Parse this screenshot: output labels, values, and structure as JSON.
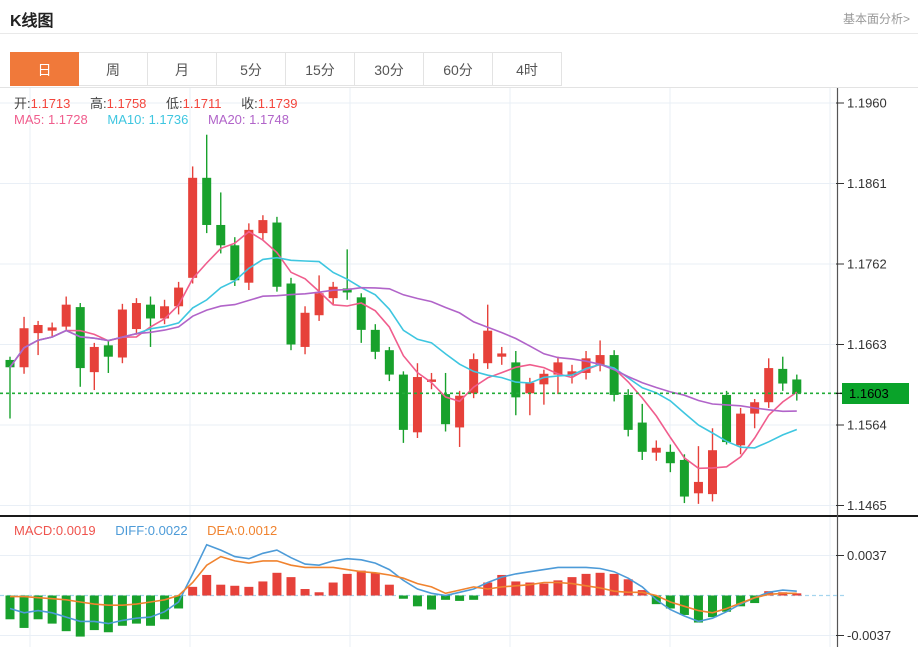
{
  "header": {
    "title": "K线图",
    "link_label": "基本面分析>"
  },
  "tabs": {
    "active_index": 0,
    "items": [
      "日",
      "周",
      "月",
      "5分",
      "15分",
      "30分",
      "60分",
      "4时"
    ]
  },
  "overlay": {
    "ohlc": [
      {
        "label": "开:",
        "value": "1.1713"
      },
      {
        "label": "高:",
        "value": "1.1758"
      },
      {
        "label": "低:",
        "value": "1.1711"
      },
      {
        "label": "收:",
        "value": "1.1739"
      }
    ],
    "ma": [
      {
        "label": "MA5:",
        "value": "1.1728"
      },
      {
        "label": "MA10:",
        "value": "1.1736"
      },
      {
        "label": "MA20:",
        "value": "1.1748"
      }
    ],
    "macd": [
      {
        "label": "MACD:",
        "value": "0.0019"
      },
      {
        "label": "DIFF:",
        "value": "0.0022"
      },
      {
        "label": "DEA:",
        "value": "0.0012"
      }
    ]
  },
  "price_line": {
    "label": "1.1603",
    "value": 1.1603
  },
  "axes": {
    "price_tick_labels": [
      "1.1960",
      "1.1861",
      "1.1762",
      "1.1663",
      "1.1564",
      "1.1465"
    ],
    "macd_tick_labels": [
      "0.0037",
      "-0.0037"
    ]
  },
  "colors": {
    "up": "#e6413a",
    "down": "#18a12c",
    "ma5": "#f05d8d",
    "ma10": "#3ec6e0",
    "ma20": "#b164c9",
    "diff": "#4d9bd8",
    "dea": "#f0832f",
    "price_line": "#22ac38",
    "price_label_bg": "#0aa32a",
    "grid": "#e9eff6",
    "axis": "#555555",
    "separator": "#1a1a1a",
    "zero_dash": "#a5d5ee",
    "accent_tab": "#f0793a"
  },
  "chart_data": {
    "type": "candlestick",
    "title": "K线图",
    "legend": [
      "MA5",
      "MA10",
      "MA20",
      "MACD",
      "DIFF",
      "DEA"
    ],
    "price_axis": {
      "max": 1.196,
      "min": 1.1465,
      "ticks": [
        1.196,
        1.1861,
        1.1762,
        1.1663,
        1.1564,
        1.1465
      ]
    },
    "current_price": 1.1603,
    "ma_periods": [
      5,
      10,
      20
    ],
    "candles_ohlc": [
      [
        1.1644,
        1.1648,
        1.1572,
        1.1635
      ],
      [
        1.1635,
        1.1697,
        1.1627,
        1.1683
      ],
      [
        1.1677,
        1.1692,
        1.165,
        1.1687
      ],
      [
        1.168,
        1.169,
        1.1672,
        1.1684
      ],
      [
        1.1685,
        1.1722,
        1.168,
        1.1712
      ],
      [
        1.1709,
        1.1714,
        1.1611,
        1.1634
      ],
      [
        1.1629,
        1.1665,
        1.1607,
        1.166
      ],
      [
        1.1662,
        1.1668,
        1.1628,
        1.1648
      ],
      [
        1.1647,
        1.1713,
        1.164,
        1.1706
      ],
      [
        1.1682,
        1.172,
        1.1675,
        1.1714
      ],
      [
        1.1712,
        1.1722,
        1.166,
        1.1695
      ],
      [
        1.1695,
        1.1718,
        1.1688,
        1.171
      ],
      [
        1.171,
        1.174,
        1.17,
        1.1733
      ],
      [
        1.1745,
        1.1882,
        1.1738,
        1.1868
      ],
      [
        1.1868,
        1.1921,
        1.18,
        1.181
      ],
      [
        1.181,
        1.185,
        1.1775,
        1.1785
      ],
      [
        1.1785,
        1.1795,
        1.1735,
        1.1742
      ],
      [
        1.1739,
        1.1812,
        1.173,
        1.1804
      ],
      [
        1.18,
        1.1822,
        1.1792,
        1.1816
      ],
      [
        1.1813,
        1.182,
        1.1728,
        1.1734
      ],
      [
        1.1738,
        1.1745,
        1.1656,
        1.1663
      ],
      [
        1.166,
        1.171,
        1.1651,
        1.1702
      ],
      [
        1.1699,
        1.1748,
        1.1692,
        1.1726
      ],
      [
        1.172,
        1.174,
        1.1712,
        1.1734
      ],
      [
        1.1732,
        1.178,
        1.1718,
        1.1727
      ],
      [
        1.1721,
        1.1726,
        1.1665,
        1.1681
      ],
      [
        1.1681,
        1.1688,
        1.1645,
        1.1654
      ],
      [
        1.1656,
        1.166,
        1.1618,
        1.1626
      ],
      [
        1.1626,
        1.163,
        1.1542,
        1.1558
      ],
      [
        1.1555,
        1.164,
        1.1548,
        1.1623
      ],
      [
        1.1617,
        1.1628,
        1.1608,
        1.162
      ],
      [
        1.1602,
        1.1628,
        1.1556,
        1.1565
      ],
      [
        1.1561,
        1.1606,
        1.1537,
        1.16
      ],
      [
        1.1603,
        1.1652,
        1.1597,
        1.1645
      ],
      [
        1.164,
        1.1712,
        1.1633,
        1.168
      ],
      [
        1.1648,
        1.166,
        1.1638,
        1.1652
      ],
      [
        1.1641,
        1.1655,
        1.1576,
        1.1598
      ],
      [
        1.1603,
        1.1622,
        1.1576,
        1.1616
      ],
      [
        1.1614,
        1.1632,
        1.1589,
        1.1627
      ],
      [
        1.1626,
        1.1648,
        1.1602,
        1.1641
      ],
      [
        1.1625,
        1.1638,
        1.1615,
        1.163
      ],
      [
        1.1628,
        1.1655,
        1.162,
        1.1646
      ],
      [
        1.1637,
        1.1668,
        1.163,
        1.165
      ],
      [
        1.165,
        1.1656,
        1.1593,
        1.1601
      ],
      [
        1.1601,
        1.1608,
        1.155,
        1.1558
      ],
      [
        1.1567,
        1.159,
        1.1521,
        1.1531
      ],
      [
        1.153,
        1.1545,
        1.152,
        1.1536
      ],
      [
        1.1531,
        1.154,
        1.1506,
        1.1517
      ],
      [
        1.1521,
        1.1528,
        1.1468,
        1.1476
      ],
      [
        1.148,
        1.1538,
        1.1467,
        1.1494
      ],
      [
        1.1479,
        1.156,
        1.147,
        1.1533
      ],
      [
        1.1601,
        1.1606,
        1.154,
        1.1543
      ],
      [
        1.1539,
        1.1585,
        1.1528,
        1.1578
      ],
      [
        1.1578,
        1.1596,
        1.156,
        1.1592
      ],
      [
        1.1592,
        1.1646,
        1.1585,
        1.1634
      ],
      [
        1.1633,
        1.1648,
        1.1606,
        1.1615
      ],
      [
        1.162,
        1.1626,
        1.1594,
        1.1603
      ]
    ],
    "macd": {
      "axis_max": 0.0037,
      "hist": [
        -0.0022,
        -0.003,
        -0.0022,
        -0.0026,
        -0.0033,
        -0.0038,
        -0.0032,
        -0.0034,
        -0.0028,
        -0.0026,
        -0.0028,
        -0.0022,
        -0.0012,
        0.0008,
        0.0019,
        0.001,
        0.0009,
        0.0008,
        0.0013,
        0.0021,
        0.0017,
        0.0006,
        0.0003,
        0.0012,
        0.002,
        0.0023,
        0.0021,
        0.001,
        -0.0003,
        -0.001,
        -0.0013,
        -0.0004,
        -0.0005,
        -0.0004,
        0.0012,
        0.0019,
        0.0013,
        0.0012,
        0.0011,
        0.0014,
        0.0017,
        0.002,
        0.0021,
        0.002,
        0.0015,
        0.0005,
        -0.0008,
        -0.0012,
        -0.0018,
        -0.0025,
        -0.002,
        -0.0015,
        -0.001,
        -0.0007,
        0.0004,
        0.0003,
        0.0002
      ],
      "diff": [
        -0.0012,
        -0.0016,
        -0.0014,
        -0.0016,
        -0.002,
        -0.0024,
        -0.0024,
        -0.0026,
        -0.0023,
        -0.0021,
        -0.002,
        -0.0015,
        -0.0006,
        0.002,
        0.0047,
        0.0042,
        0.0036,
        0.0034,
        0.0039,
        0.0042,
        0.0035,
        0.0029,
        0.0028,
        0.0032,
        0.0034,
        0.0033,
        0.003,
        0.0024,
        0.0014,
        0.0006,
        0.0002,
        0.0,
        0.0003,
        0.0006,
        0.0012,
        0.0017,
        0.002,
        0.0022,
        0.0024,
        0.0026,
        0.0026,
        0.0026,
        0.0025,
        0.0022,
        0.0016,
        0.0008,
        -0.0004,
        -0.0013,
        -0.0019,
        -0.0024,
        -0.0021,
        -0.0015,
        -0.0008,
        -0.0002,
        0.0003,
        0.0005,
        0.0004
      ],
      "dea": [
        -0.0001,
        -0.0001,
        -0.0002,
        -0.0003,
        -0.0004,
        -0.0006,
        -0.0008,
        -0.0009,
        -0.0009,
        -0.0008,
        -0.0006,
        -0.0004,
        0.0,
        0.0012,
        0.0028,
        0.0036,
        0.0032,
        0.003,
        0.0032,
        0.0032,
        0.0028,
        0.0026,
        0.0026,
        0.0026,
        0.0024,
        0.0022,
        0.0021,
        0.0019,
        0.0016,
        0.0011,
        0.0008,
        0.0002,
        0.0005,
        0.0008,
        0.0006,
        0.0008,
        0.0009,
        0.001,
        0.0012,
        0.0012,
        0.0011,
        0.0009,
        0.0007,
        0.0004,
        0.0003,
        0.0003,
        0.0,
        -0.0006,
        -0.001,
        -0.0014,
        -0.0016,
        -0.0012,
        -0.0007,
        -0.0002,
        0.0001,
        0.0002,
        0.0002
      ]
    }
  }
}
